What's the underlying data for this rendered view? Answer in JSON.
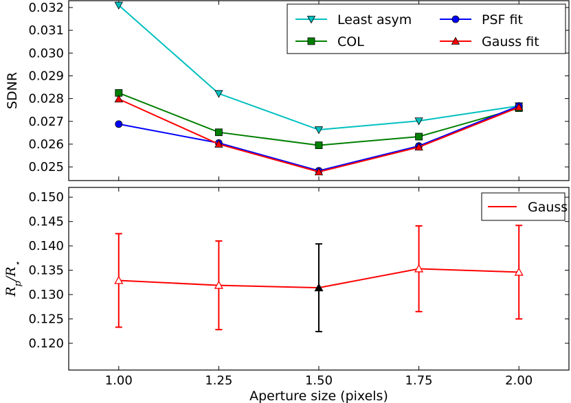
{
  "chart_data": [
    {
      "type": "line",
      "x": [
        1.0,
        1.25,
        1.5,
        1.75,
        2.0
      ],
      "ylabel": "SDNR",
      "xlim": [
        0.875,
        2.125
      ],
      "ylim": [
        0.0244,
        0.0323
      ],
      "yticks": [
        "0.025",
        "0.026",
        "0.027",
        "0.028",
        "0.029",
        "0.030",
        "0.031",
        "0.032"
      ],
      "legend_position": "top-right",
      "series": [
        {
          "name": "Least asym",
          "color": "#00bfbf",
          "marker": "triangle-down",
          "values": [
            0.0321,
            0.02822,
            0.02663,
            0.02702,
            0.02768
          ]
        },
        {
          "name": "COL",
          "color": "#007f00",
          "marker": "square",
          "values": [
            0.02825,
            0.02652,
            0.02595,
            0.02633,
            0.02758
          ]
        },
        {
          "name": "PSF fit",
          "color": "#0000ff",
          "marker": "circle",
          "values": [
            0.02688,
            0.02605,
            0.02483,
            0.02592,
            0.02768
          ]
        },
        {
          "name": "Gauss fit",
          "color": "#ff0000",
          "marker": "triangle-up",
          "values": [
            0.02798,
            0.026,
            0.02478,
            0.02587,
            0.02762
          ]
        }
      ]
    },
    {
      "type": "line",
      "x": [
        1.0,
        1.25,
        1.5,
        1.75,
        2.0
      ],
      "xticks": [
        "1.00",
        "1.25",
        "1.50",
        "1.75",
        "2.00"
      ],
      "xlabel": "Aperture size (pixels)",
      "ylabel": "R_p/R_⋆",
      "xlim": [
        0.875,
        2.125
      ],
      "ylim": [
        0.1145,
        0.152
      ],
      "yticks": [
        "0.120",
        "0.125",
        "0.130",
        "0.135",
        "0.140",
        "0.145",
        "0.150"
      ],
      "legend_position": "top-right",
      "series": [
        {
          "name": "Gauss fit",
          "color": "#ff0000",
          "marker": "triangle-up-open",
          "values": [
            0.1329,
            0.1319,
            0.1314,
            0.1353,
            0.1346
          ],
          "errors": [
            0.0096,
            0.0091,
            0.009,
            0.0088,
            0.0096
          ],
          "highlight_index": 2,
          "highlight_color": "#000000"
        }
      ]
    }
  ]
}
